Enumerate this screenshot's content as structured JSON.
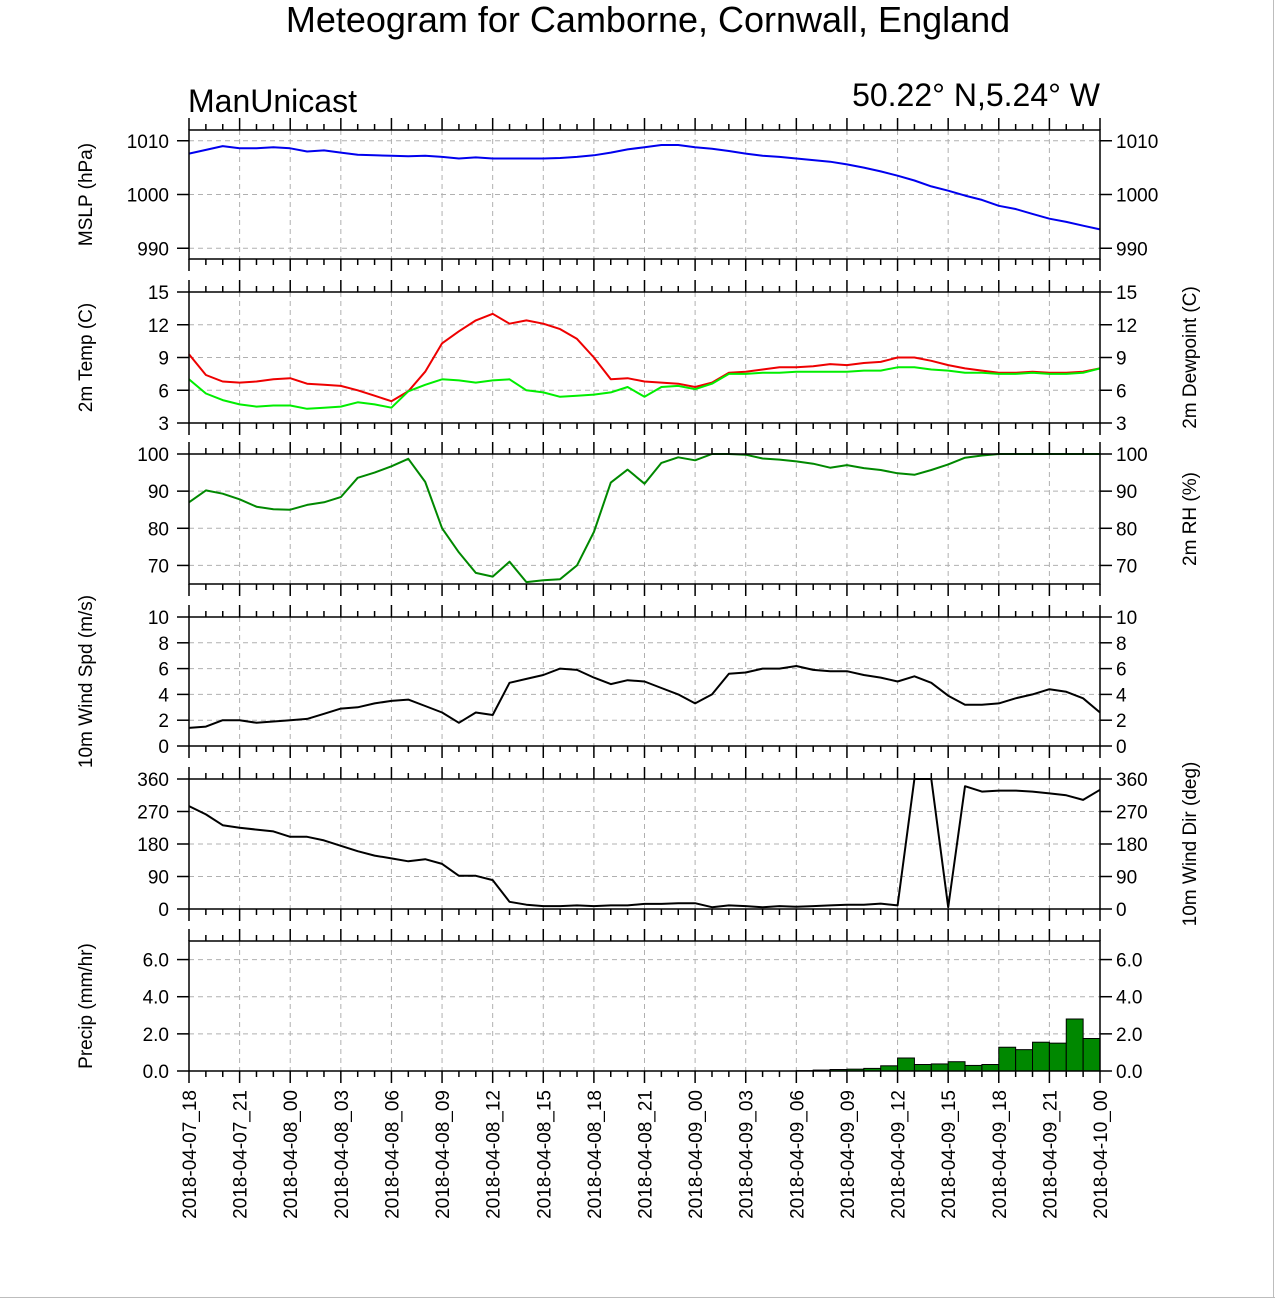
{
  "title": "Meteogram for Camborne, Cornwall, England",
  "model": "ManUnicast",
  "location": "50.22° N,5.24° W",
  "colors": {
    "mslp": "#0000ee",
    "temp": "#ee0000",
    "dewpoint": "#00ee00",
    "rh": "#008800",
    "wind": "#000000",
    "precip_fill": "#008800",
    "grid": "#b0b0b0"
  },
  "x_ticks": [
    "2018-04-07_18",
    "2018-04-07_21",
    "2018-04-08_00",
    "2018-04-08_03",
    "2018-04-08_06",
    "2018-04-08_09",
    "2018-04-08_12",
    "2018-04-08_15",
    "2018-04-08_18",
    "2018-04-08_21",
    "2018-04-09_00",
    "2018-04-09_03",
    "2018-04-09_06",
    "2018-04-09_09",
    "2018-04-09_12",
    "2018-04-09_15",
    "2018-04-09_18",
    "2018-04-09_21",
    "2018-04-10_00"
  ],
  "chart_data": [
    {
      "id": "mslp",
      "type": "line",
      "ylabel_left": "MSLP (hPa)",
      "ylabel_right": "",
      "ylim": [
        988,
        1012
      ],
      "yticks": [
        990,
        1000,
        1010
      ],
      "tick_labels": [
        "990",
        "1000",
        "1010"
      ],
      "right_tick_labels": true,
      "x_hours": [
        0,
        1,
        2,
        3,
        4,
        5,
        6,
        7,
        8,
        9,
        10,
        11,
        12,
        13,
        14,
        15,
        16,
        17,
        18,
        19,
        20,
        21,
        22,
        23,
        24,
        25,
        26,
        27,
        28,
        29,
        30,
        31,
        32,
        33,
        34,
        35,
        36,
        37,
        38,
        39,
        40,
        41,
        42,
        43,
        44,
        45,
        46,
        47,
        48,
        49,
        50,
        51,
        52,
        53,
        54
      ],
      "series": [
        {
          "name": "",
          "color_key": "mslp",
          "values": [
            1007.6,
            1008.3,
            1009.0,
            1008.6,
            1008.6,
            1008.8,
            1008.6,
            1008.0,
            1008.2,
            1007.8,
            1007.4,
            1007.3,
            1007.2,
            1007.1,
            1007.2,
            1007.0,
            1006.7,
            1006.9,
            1006.7,
            1006.7,
            1006.7,
            1006.7,
            1006.8,
            1007.0,
            1007.3,
            1007.8,
            1008.4,
            1008.8,
            1009.2,
            1009.2,
            1008.8,
            1008.5,
            1008.1,
            1007.6,
            1007.2,
            1007.0,
            1006.7,
            1006.4,
            1006.1,
            1005.6,
            1005.0,
            1004.3,
            1003.5,
            1002.6,
            1001.5,
            1000.7,
            999.8,
            999.0,
            997.9,
            997.3,
            996.4,
            995.5,
            994.9,
            994.2,
            993.5
          ]
        }
      ]
    },
    {
      "id": "temp",
      "type": "line",
      "ylabel_left": "2m Temp (C)",
      "ylabel_right": "2m Dewpoint (C)",
      "ylim": [
        3,
        15
      ],
      "yticks": [
        3,
        6,
        9,
        12,
        15
      ],
      "tick_labels": [
        "3",
        "6",
        "9",
        "12",
        "15"
      ],
      "right_tick_labels": true,
      "x_hours": [
        0,
        1,
        2,
        3,
        4,
        5,
        6,
        7,
        8,
        9,
        10,
        11,
        12,
        13,
        14,
        15,
        16,
        17,
        18,
        19,
        20,
        21,
        22,
        23,
        24,
        25,
        26,
        27,
        28,
        29,
        30,
        31,
        32,
        33,
        34,
        35,
        36,
        37,
        38,
        39,
        40,
        41,
        42,
        43,
        44,
        45,
        46,
        47,
        48,
        49,
        50,
        51,
        52,
        53,
        54
      ],
      "series": [
        {
          "name": "2m Temp",
          "color_key": "temp",
          "values": [
            9.3,
            7.4,
            6.8,
            6.7,
            6.8,
            7.0,
            7.1,
            6.6,
            6.5,
            6.4,
            6.0,
            5.5,
            5.0,
            5.9,
            7.7,
            10.3,
            11.4,
            12.4,
            13.0,
            12.1,
            12.4,
            12.1,
            11.6,
            10.7,
            9.0,
            7.0,
            7.1,
            6.8,
            6.7,
            6.6,
            6.3,
            6.7,
            7.6,
            7.7,
            7.9,
            8.1,
            8.1,
            8.2,
            8.4,
            8.3,
            8.5,
            8.6,
            9.0,
            9.0,
            8.7,
            8.3,
            8.0,
            7.8,
            7.6,
            7.6,
            7.7,
            7.6,
            7.6,
            7.7,
            8.0
          ]
        },
        {
          "name": "2m Dewpoint",
          "color_key": "dewpoint",
          "values": [
            7.0,
            5.7,
            5.1,
            4.7,
            4.5,
            4.6,
            4.6,
            4.3,
            4.4,
            4.5,
            4.9,
            4.7,
            4.4,
            5.9,
            6.5,
            7.0,
            6.9,
            6.7,
            6.9,
            7.0,
            6.0,
            5.8,
            5.4,
            5.5,
            5.6,
            5.8,
            6.3,
            5.4,
            6.3,
            6.4,
            6.1,
            6.6,
            7.5,
            7.5,
            7.6,
            7.6,
            7.7,
            7.7,
            7.7,
            7.7,
            7.8,
            7.8,
            8.1,
            8.1,
            7.9,
            7.8,
            7.6,
            7.6,
            7.5,
            7.5,
            7.6,
            7.5,
            7.5,
            7.6,
            8.0
          ]
        }
      ]
    },
    {
      "id": "rh",
      "type": "line",
      "ylabel_left": "",
      "ylabel_right": "2m RH (%)",
      "ylim": [
        65,
        100
      ],
      "yticks": [
        70,
        80,
        90,
        100
      ],
      "tick_labels": [
        "70",
        "80",
        "90",
        "100"
      ],
      "right_tick_labels": true,
      "x_hours": [
        0,
        1,
        2,
        3,
        4,
        5,
        6,
        7,
        8,
        9,
        10,
        11,
        12,
        13,
        14,
        15,
        16,
        17,
        18,
        19,
        20,
        21,
        22,
        23,
        24,
        25,
        26,
        27,
        28,
        29,
        30,
        31,
        32,
        33,
        34,
        35,
        36,
        37,
        38,
        39,
        40,
        41,
        42,
        43,
        44,
        45,
        46,
        47,
        48,
        49,
        50,
        51,
        52,
        53,
        54
      ],
      "series": [
        {
          "name": "2m RH",
          "color_key": "rh",
          "values": [
            87,
            90.2,
            89.3,
            87.8,
            85.8,
            85.1,
            85,
            86.3,
            87,
            88.4,
            93.6,
            95,
            96.7,
            98.7,
            92.5,
            80,
            73.5,
            68,
            67,
            71,
            65.5,
            66,
            66.3,
            70,
            79,
            92.3,
            95.8,
            92,
            97.6,
            99.1,
            98.3,
            100,
            100,
            99.8,
            98.8,
            98.5,
            98,
            97.4,
            96.3,
            97,
            96.2,
            95.7,
            94.8,
            94.4,
            95.7,
            97.2,
            99,
            99.6,
            100,
            100,
            100,
            100,
            100,
            100,
            100
          ]
        }
      ]
    },
    {
      "id": "wspd",
      "type": "line",
      "ylabel_left": "10m Wind Spd (m/s)",
      "ylabel_right": "",
      "ylim": [
        0,
        10
      ],
      "yticks": [
        0,
        2,
        4,
        6,
        8,
        10
      ],
      "tick_labels": [
        "0",
        "2",
        "4",
        "6",
        "8",
        "10"
      ],
      "right_tick_labels": true,
      "x_hours": [
        0,
        1,
        2,
        3,
        4,
        5,
        6,
        7,
        8,
        9,
        10,
        11,
        12,
        13,
        14,
        15,
        16,
        17,
        18,
        19,
        20,
        21,
        22,
        23,
        24,
        25,
        26,
        27,
        28,
        29,
        30,
        31,
        32,
        33,
        34,
        35,
        36,
        37,
        38,
        39,
        40,
        41,
        42,
        43,
        44,
        45,
        46,
        47,
        48,
        49,
        50,
        51,
        52,
        53,
        54
      ],
      "series": [
        {
          "name": "",
          "color_key": "wind",
          "values": [
            1.4,
            1.5,
            2.0,
            2.0,
            1.8,
            1.9,
            2.0,
            2.1,
            2.5,
            2.9,
            3.0,
            3.3,
            3.5,
            3.6,
            3.1,
            2.6,
            1.8,
            2.6,
            2.4,
            4.9,
            5.2,
            5.5,
            6.0,
            5.9,
            5.3,
            4.8,
            5.1,
            5.0,
            4.5,
            4.0,
            3.3,
            4.0,
            5.6,
            5.7,
            6.0,
            6.0,
            6.2,
            5.9,
            5.8,
            5.8,
            5.5,
            5.3,
            5.0,
            5.4,
            4.9,
            3.9,
            3.2,
            3.2,
            3.3,
            3.7,
            4.0,
            4.4,
            4.2,
            3.7,
            2.6
          ]
        }
      ]
    },
    {
      "id": "wdir",
      "type": "line",
      "ylabel_left": "",
      "ylabel_right": "10m Wind Dir (deg)",
      "ylim": [
        0,
        360
      ],
      "yticks": [
        0,
        90,
        180,
        270,
        360
      ],
      "tick_labels": [
        "0",
        "90",
        "180",
        "270",
        "360"
      ],
      "right_tick_labels": true,
      "x_hours": [
        0,
        1,
        2,
        3,
        4,
        5,
        6,
        7,
        8,
        9,
        10,
        11,
        12,
        13,
        14,
        15,
        16,
        17,
        18,
        19,
        20,
        21,
        22,
        23,
        24,
        25,
        26,
        27,
        28,
        29,
        30,
        31,
        32,
        33,
        34,
        35,
        36,
        37,
        38,
        39,
        40,
        41,
        42,
        43,
        44,
        45,
        46,
        47,
        48,
        49,
        50,
        51,
        52,
        53,
        54
      ],
      "series": [
        {
          "name": "",
          "color_key": "wind",
          "values": [
            285,
            262,
            232,
            225,
            220,
            215,
            200,
            200,
            190,
            175,
            160,
            148,
            140,
            132,
            138,
            125,
            92,
            92,
            80,
            20,
            12,
            8,
            8,
            10,
            8,
            10,
            10,
            14,
            14,
            16,
            16,
            5,
            10,
            8,
            5,
            8,
            6,
            8,
            10,
            12,
            12,
            15,
            10,
            360,
            360,
            5,
            340,
            325,
            328,
            328,
            325,
            320,
            315,
            302,
            330
          ]
        }
      ]
    },
    {
      "id": "precip",
      "type": "bar",
      "ylabel_left": "Precip (mm/hr)",
      "ylabel_right": "",
      "ylim": [
        0,
        7
      ],
      "yticks": [
        0,
        2,
        4,
        6
      ],
      "tick_labels": [
        "0.0",
        "2.0",
        "4.0",
        "6.0"
      ],
      "right_tick_labels": true,
      "x_hours": [
        0,
        1,
        2,
        3,
        4,
        5,
        6,
        7,
        8,
        9,
        10,
        11,
        12,
        13,
        14,
        15,
        16,
        17,
        18,
        19,
        20,
        21,
        22,
        23,
        24,
        25,
        26,
        27,
        28,
        29,
        30,
        31,
        32,
        33,
        34,
        35,
        36,
        37,
        38,
        39,
        40,
        41,
        42,
        43,
        44,
        45,
        46,
        47,
        48,
        49,
        50,
        51,
        52,
        53
      ],
      "values": [
        0,
        0,
        0,
        0,
        0,
        0,
        0,
        0,
        0,
        0,
        0,
        0,
        0,
        0,
        0,
        0,
        0,
        0,
        0,
        0,
        0,
        0,
        0,
        0,
        0,
        0,
        0,
        0,
        0,
        0,
        0,
        0,
        0,
        0,
        0,
        0,
        0.02,
        0.05,
        0.08,
        0.1,
        0.14,
        0.28,
        0.7,
        0.35,
        0.38,
        0.5,
        0.3,
        0.35,
        1.28,
        1.15,
        1.55,
        1.5,
        2.8,
        1.75
      ]
    }
  ]
}
